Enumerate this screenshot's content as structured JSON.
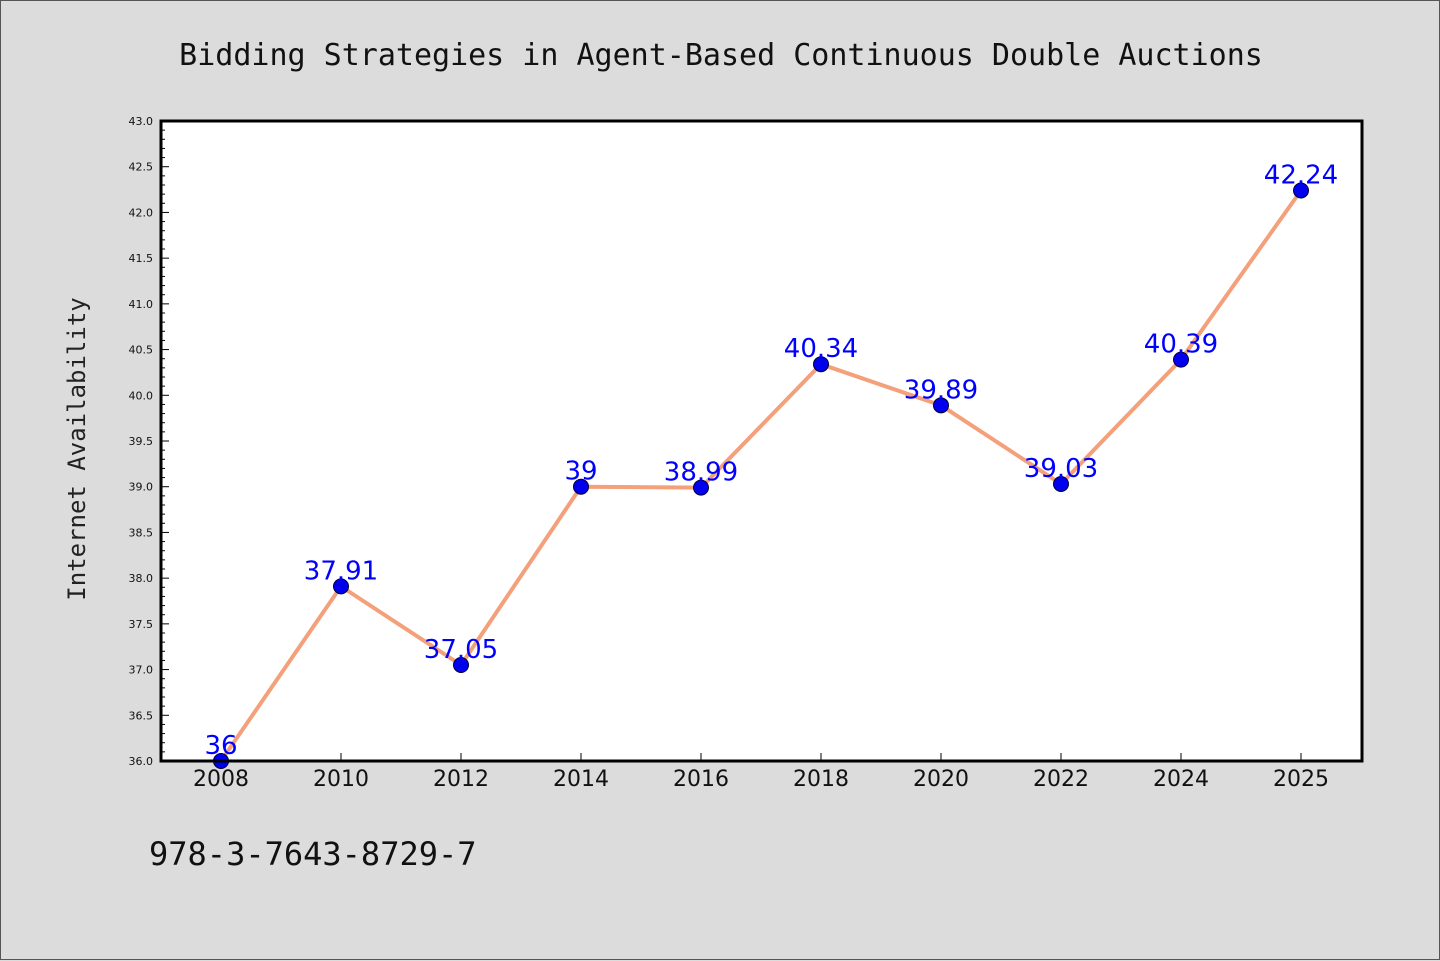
{
  "chart_data": {
    "type": "line",
    "title": "Bidding Strategies in Agent-Based Continuous Double Auctions",
    "xlabel": "",
    "ylabel": "Internet Availability",
    "categories": [
      "2008",
      "2010",
      "2012",
      "2014",
      "2016",
      "2018",
      "2020",
      "2022",
      "2024",
      "2025"
    ],
    "series": [
      {
        "values": [
          36,
          37.91,
          37.05,
          39,
          38.99,
          40.34,
          39.89,
          39.03,
          40.39,
          42.24
        ],
        "data_labels": [
          "36",
          "37.91",
          "37.05",
          "39",
          "38.99",
          "40.34",
          "39.89",
          "39.03",
          "40.39",
          "42.24"
        ],
        "line_color": "#f4a07a",
        "marker_color": "#0000ee",
        "label_color": "#0000ff"
      }
    ],
    "ylim": [
      36.0,
      43.0
    ],
    "yticks": [
      "36.0",
      "36.5",
      "37.0",
      "37.5",
      "38.0",
      "38.5",
      "39.0",
      "39.5",
      "40.0",
      "40.5",
      "41.0",
      "41.5",
      "42.0",
      "42.5",
      "43.0"
    ],
    "grid": false,
    "legend": "none",
    "background_color": "#dcdcdc",
    "plot_background": "#ffffff"
  },
  "footer": {
    "isbn": "978-3-7643-8729-7"
  }
}
